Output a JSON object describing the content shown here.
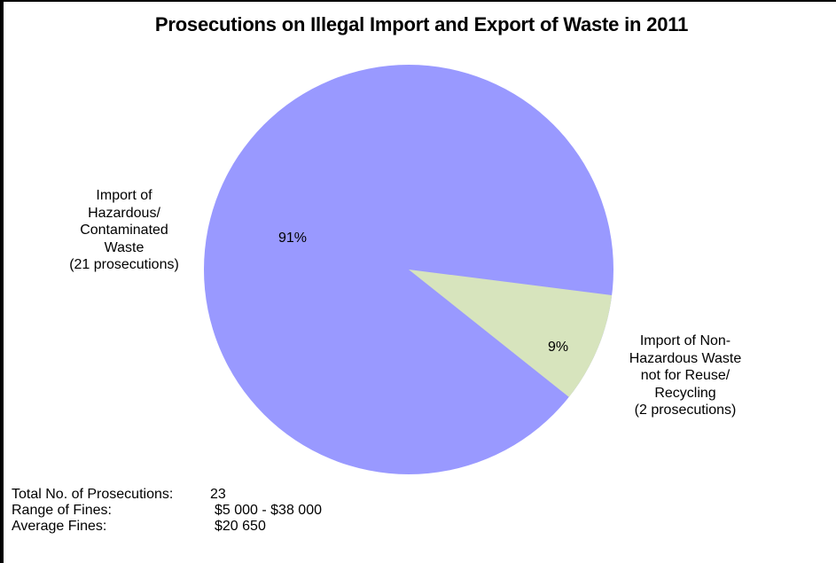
{
  "chart_data": {
    "type": "pie",
    "title": "Prosecutions on Illegal Import and Export of Waste in 2011",
    "categories": [
      "Import of Hazardous/ Contaminated Waste",
      "Import of Non-Hazardous Waste not for Reuse/ Recycling"
    ],
    "values": [
      21,
      2
    ],
    "percentages": [
      91,
      9
    ],
    "colors": [
      "#9999FF",
      "#D7E4BD"
    ],
    "data_labels": [
      "91%",
      "9%"
    ],
    "category_labels": [
      [
        "Import of",
        "Hazardous/",
        "Contaminated",
        "Waste",
        "(21 prosecutions)"
      ],
      [
        "Import of Non-",
        "Hazardous Waste",
        "not for Reuse/",
        "Recycling",
        "(2 prosecutions)"
      ]
    ],
    "legend": "none"
  },
  "title": "Prosecutions on Illegal Import and Export of Waste in 2011",
  "slices": [
    {
      "pct_label": "91%",
      "label_lines": [
        "Import of",
        "Hazardous/",
        "Contaminated",
        "Waste",
        "(21 prosecutions)"
      ]
    },
    {
      "pct_label": "9%",
      "label_lines": [
        "Import of Non-",
        "Hazardous Waste",
        "not for Reuse/",
        "Recycling",
        "(2 prosecutions)"
      ]
    }
  ],
  "stats": [
    {
      "key": "Total No. of Prosecutions:",
      "value": "23"
    },
    {
      "key": "Range of Fines:",
      "value": "$5 000 - $38 000"
    },
    {
      "key": "Average Fines:",
      "value": "$20 650"
    }
  ]
}
